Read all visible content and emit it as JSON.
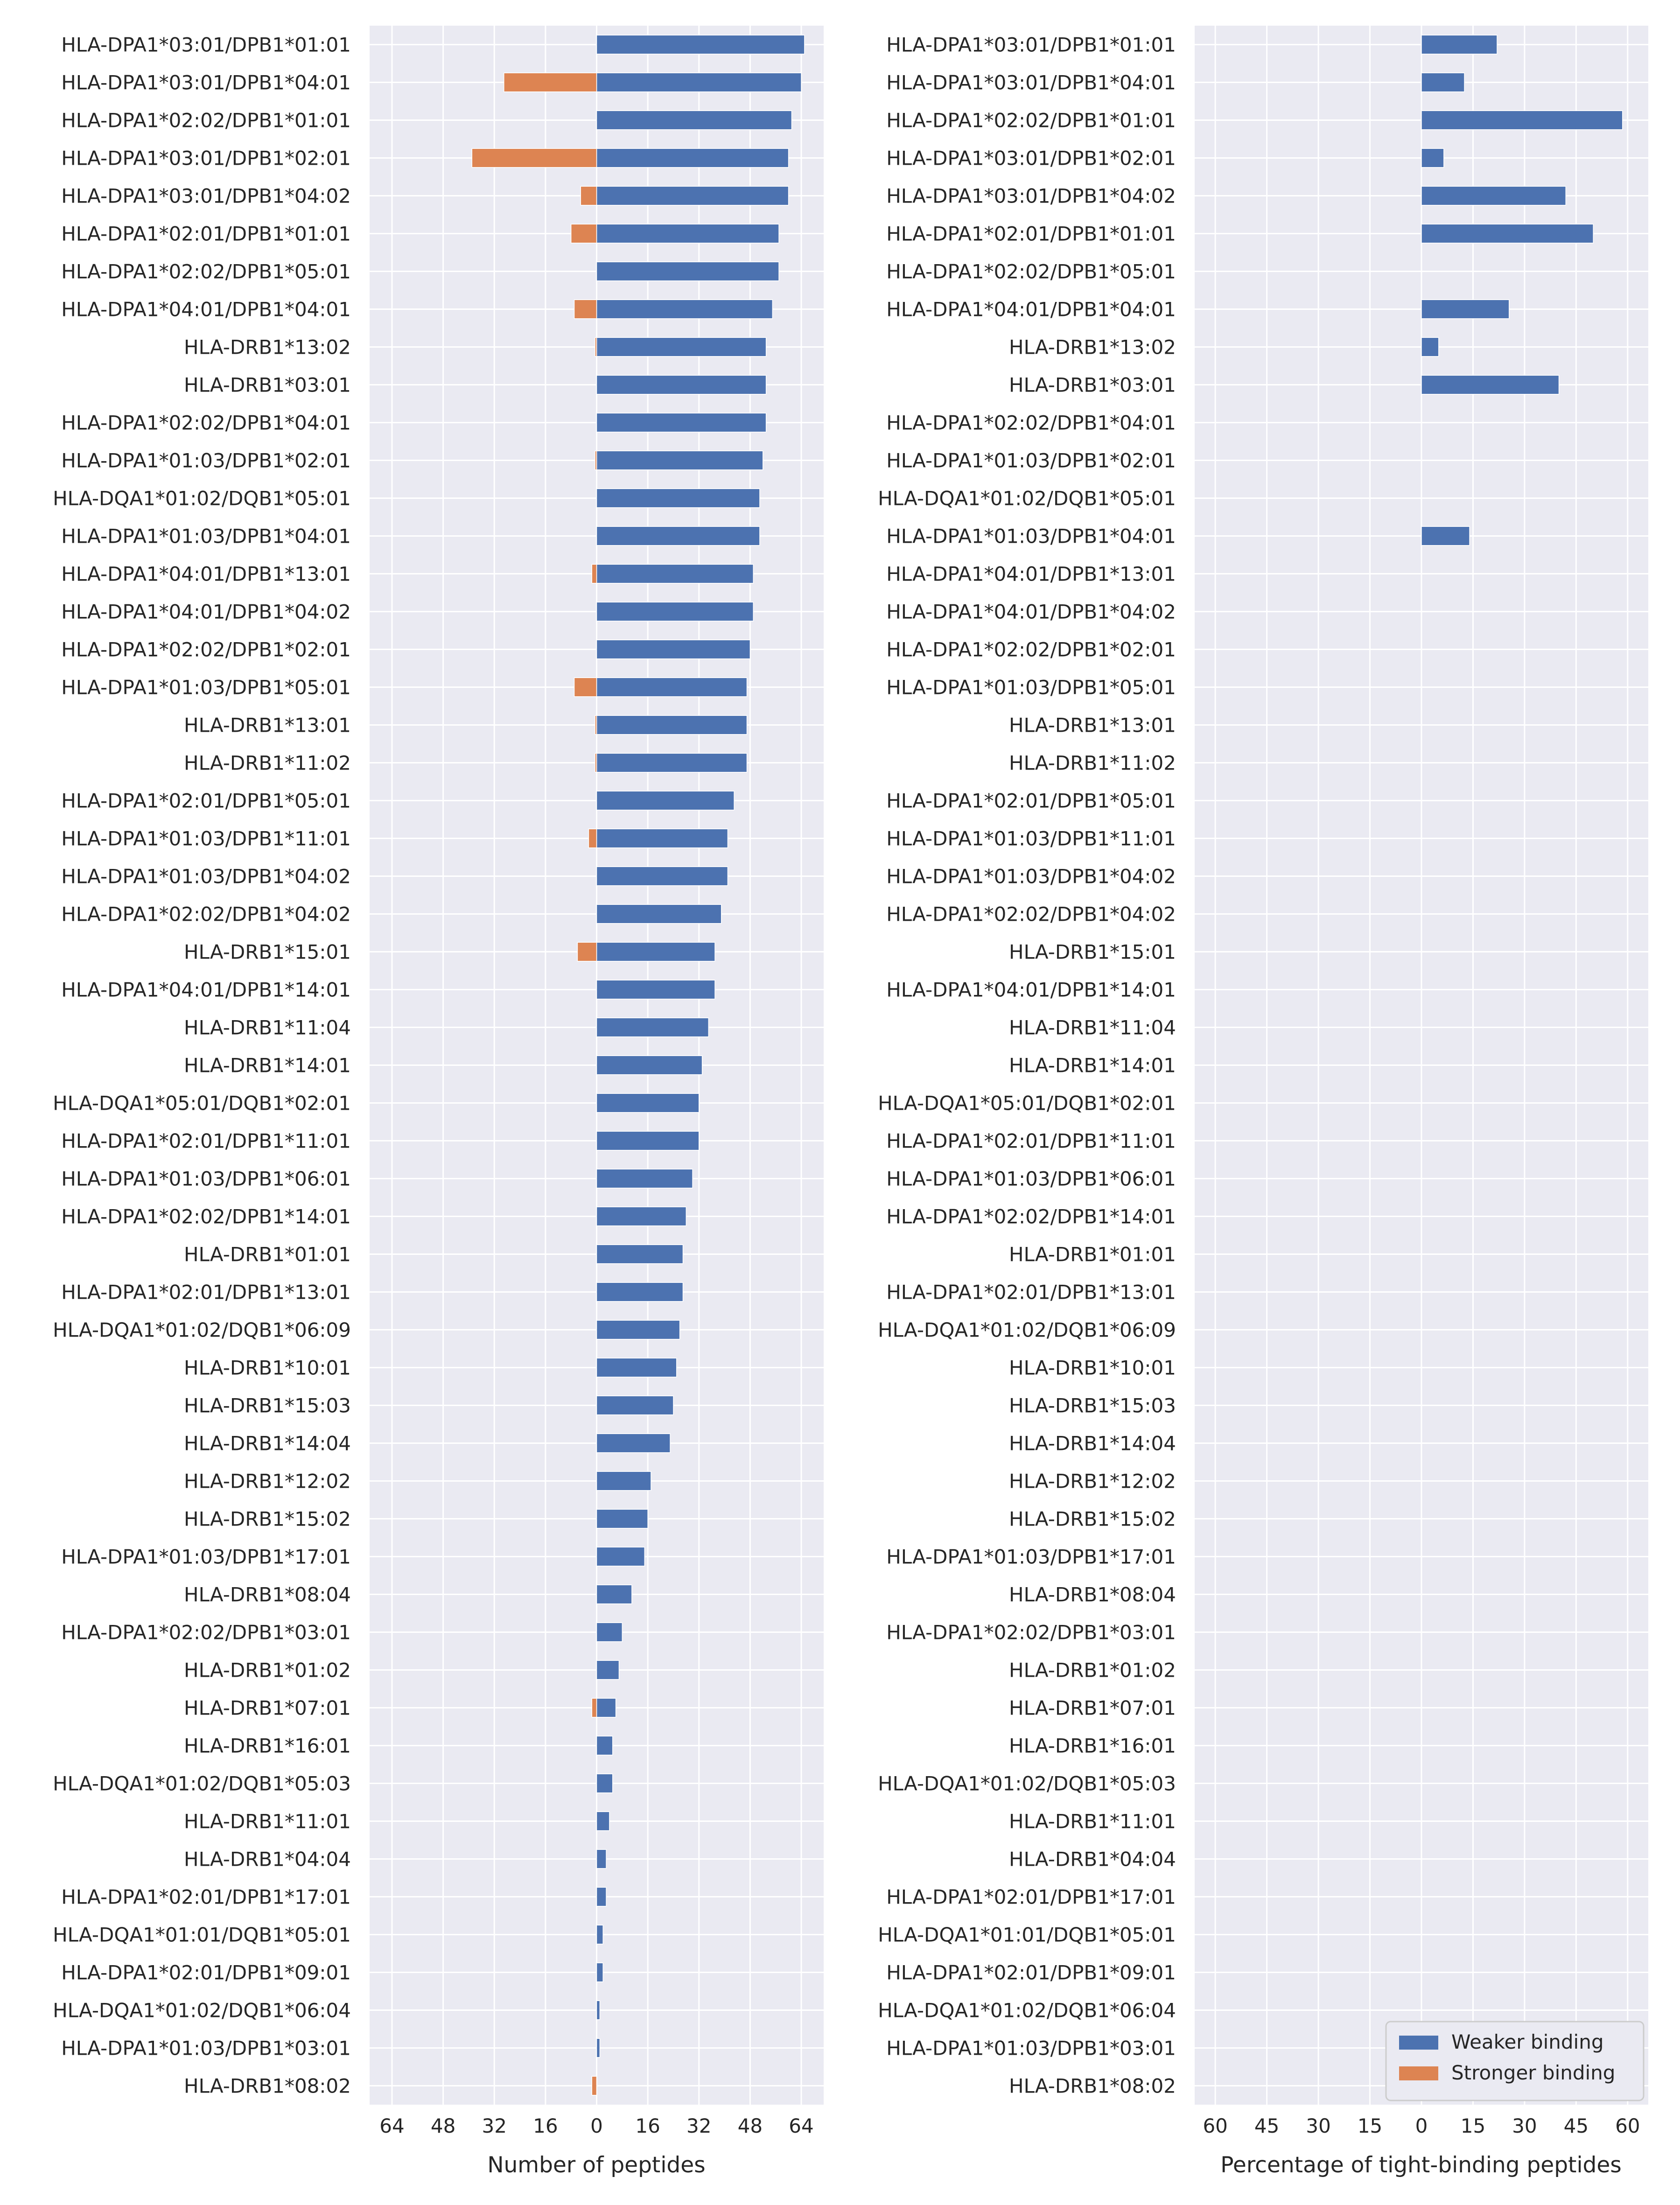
{
  "chart_data": [
    {
      "type": "bar",
      "orientation": "horizontal",
      "xlabel": "Number of peptides",
      "xticks": [
        "64",
        "48",
        "32",
        "16",
        "0",
        "16",
        "32",
        "48",
        "64"
      ],
      "xlim": [
        -71,
        71
      ],
      "grid": true,
      "categories": [
        "HLA-DPA1*03:01/DPB1*01:01",
        "HLA-DPA1*03:01/DPB1*04:01",
        "HLA-DPA1*02:02/DPB1*01:01",
        "HLA-DPA1*03:01/DPB1*02:01",
        "HLA-DPA1*03:01/DPB1*04:02",
        "HLA-DPA1*02:01/DPB1*01:01",
        "HLA-DPA1*02:02/DPB1*05:01",
        "HLA-DPA1*04:01/DPB1*04:01",
        "HLA-DRB1*13:02",
        "HLA-DRB1*03:01",
        "HLA-DPA1*02:02/DPB1*04:01",
        "HLA-DPA1*01:03/DPB1*02:01",
        "HLA-DQA1*01:02/DQB1*05:01",
        "HLA-DPA1*01:03/DPB1*04:01",
        "HLA-DPA1*04:01/DPB1*13:01",
        "HLA-DPA1*04:01/DPB1*04:02",
        "HLA-DPA1*02:02/DPB1*02:01",
        "HLA-DPA1*01:03/DPB1*05:01",
        "HLA-DRB1*13:01",
        "HLA-DRB1*11:02",
        "HLA-DPA1*02:01/DPB1*05:01",
        "HLA-DPA1*01:03/DPB1*11:01",
        "HLA-DPA1*01:03/DPB1*04:02",
        "HLA-DPA1*02:02/DPB1*04:02",
        "HLA-DRB1*15:01",
        "HLA-DPA1*04:01/DPB1*14:01",
        "HLA-DRB1*11:04",
        "HLA-DRB1*14:01",
        "HLA-DQA1*05:01/DQB1*02:01",
        "HLA-DPA1*02:01/DPB1*11:01",
        "HLA-DPA1*01:03/DPB1*06:01",
        "HLA-DPA1*02:02/DPB1*14:01",
        "HLA-DRB1*01:01",
        "HLA-DPA1*02:01/DPB1*13:01",
        "HLA-DQA1*01:02/DQB1*06:09",
        "HLA-DRB1*10:01",
        "HLA-DRB1*15:03",
        "HLA-DRB1*14:04",
        "HLA-DRB1*12:02",
        "HLA-DRB1*15:02",
        "HLA-DPA1*01:03/DPB1*17:01",
        "HLA-DRB1*08:04",
        "HLA-DPA1*02:02/DPB1*03:01",
        "HLA-DRB1*01:02",
        "HLA-DRB1*07:01",
        "HLA-DRB1*16:01",
        "HLA-DQA1*01:02/DQB1*05:03",
        "HLA-DRB1*11:01",
        "HLA-DRB1*04:04",
        "HLA-DPA1*02:01/DPB1*17:01",
        "HLA-DQA1*01:01/DQB1*05:01",
        "HLA-DPA1*02:01/DPB1*09:01",
        "HLA-DQA1*01:02/DQB1*06:04",
        "HLA-DPA1*01:03/DPB1*03:01",
        "HLA-DRB1*08:02"
      ],
      "series": [
        {
          "name": "Weaker binding",
          "color": "#4c72b0",
          "values": [
            65,
            64,
            61,
            60,
            60,
            57,
            57,
            55,
            53,
            53,
            53,
            52,
            51,
            51,
            49,
            49,
            48,
            47,
            47,
            47,
            43,
            41,
            41,
            39,
            37,
            37,
            35,
            33,
            32,
            32,
            30,
            28,
            27,
            27,
            26,
            25,
            24,
            23,
            17,
            16,
            15,
            11,
            8,
            7,
            6,
            5,
            5,
            4,
            3,
            3,
            2,
            2,
            1,
            1,
            0
          ]
        },
        {
          "name": "Stronger binding",
          "color": "#dd8452",
          "values": [
            0,
            29,
            0,
            39,
            5,
            8,
            0,
            7,
            0.5,
            0,
            0,
            0.5,
            0,
            0,
            1.5,
            0,
            0,
            7,
            0.5,
            0.5,
            0,
            2.5,
            0,
            0,
            6,
            0,
            0,
            0,
            0,
            0,
            0,
            0,
            0,
            0,
            0,
            0,
            0,
            0,
            0,
            0,
            0,
            0,
            0,
            0,
            1.5,
            0,
            0,
            0,
            0,
            0,
            0,
            0,
            0,
            0,
            1.5
          ]
        }
      ]
    },
    {
      "type": "bar",
      "orientation": "horizontal",
      "xlabel": "Percentage of tight-binding peptides",
      "xticks": [
        "60",
        "45",
        "30",
        "15",
        "0",
        "15",
        "30",
        "45",
        "60"
      ],
      "xlim": [
        -66,
        66
      ],
      "grid": true,
      "legend_position": "bottom-right",
      "legend": [
        "Weaker binding",
        "Stronger binding"
      ],
      "categories": [
        "HLA-DPA1*03:01/DPB1*01:01",
        "HLA-DPA1*03:01/DPB1*04:01",
        "HLA-DPA1*02:02/DPB1*01:01",
        "HLA-DPA1*03:01/DPB1*02:01",
        "HLA-DPA1*03:01/DPB1*04:02",
        "HLA-DPA1*02:01/DPB1*01:01",
        "HLA-DPA1*02:02/DPB1*05:01",
        "HLA-DPA1*04:01/DPB1*04:01",
        "HLA-DRB1*13:02",
        "HLA-DRB1*03:01",
        "HLA-DPA1*02:02/DPB1*04:01",
        "HLA-DPA1*01:03/DPB1*02:01",
        "HLA-DQA1*01:02/DQB1*05:01",
        "HLA-DPA1*01:03/DPB1*04:01",
        "HLA-DPA1*04:01/DPB1*13:01",
        "HLA-DPA1*04:01/DPB1*04:02",
        "HLA-DPA1*02:02/DPB1*02:01",
        "HLA-DPA1*01:03/DPB1*05:01",
        "HLA-DRB1*13:01",
        "HLA-DRB1*11:02",
        "HLA-DPA1*02:01/DPB1*05:01",
        "HLA-DPA1*01:03/DPB1*11:01",
        "HLA-DPA1*01:03/DPB1*04:02",
        "HLA-DPA1*02:02/DPB1*04:02",
        "HLA-DRB1*15:01",
        "HLA-DPA1*04:01/DPB1*14:01",
        "HLA-DRB1*11:04",
        "HLA-DRB1*14:01",
        "HLA-DQA1*05:01/DQB1*02:01",
        "HLA-DPA1*02:01/DPB1*11:01",
        "HLA-DPA1*01:03/DPB1*06:01",
        "HLA-DPA1*02:02/DPB1*14:01",
        "HLA-DRB1*01:01",
        "HLA-DPA1*02:01/DPB1*13:01",
        "HLA-DQA1*01:02/DQB1*06:09",
        "HLA-DRB1*10:01",
        "HLA-DRB1*15:03",
        "HLA-DRB1*14:04",
        "HLA-DRB1*12:02",
        "HLA-DRB1*15:02",
        "HLA-DPA1*01:03/DPB1*17:01",
        "HLA-DRB1*08:04",
        "HLA-DPA1*02:02/DPB1*03:01",
        "HLA-DRB1*01:02",
        "HLA-DRB1*07:01",
        "HLA-DRB1*16:01",
        "HLA-DQA1*01:02/DQB1*05:03",
        "HLA-DRB1*11:01",
        "HLA-DRB1*04:04",
        "HLA-DPA1*02:01/DPB1*17:01",
        "HLA-DQA1*01:01/DQB1*05:01",
        "HLA-DPA1*02:01/DPB1*09:01",
        "HLA-DQA1*01:02/DQB1*06:04",
        "HLA-DPA1*01:03/DPB1*03:01",
        "HLA-DRB1*08:02"
      ],
      "series": [
        {
          "name": "Weaker binding",
          "color": "#4c72b0",
          "values": [
            22,
            12.5,
            58.5,
            6.5,
            42,
            50,
            0,
            25.5,
            5,
            40,
            0,
            0,
            0,
            14,
            0,
            0,
            0,
            0,
            0,
            0,
            0,
            0,
            0,
            0,
            0,
            0,
            0,
            0,
            0,
            0,
            0,
            0,
            0,
            0,
            0,
            0,
            0,
            0,
            0,
            0,
            0,
            0,
            0,
            0,
            0,
            0,
            0,
            0,
            0,
            0,
            0,
            0,
            0,
            0,
            0
          ]
        },
        {
          "name": "Stronger binding",
          "color": "#dd8452",
          "values": [
            0,
            0,
            0,
            0,
            0,
            0,
            0,
            0,
            0,
            0,
            0,
            0,
            0,
            0,
            0,
            0,
            0,
            0,
            0,
            0,
            0,
            0,
            0,
            0,
            0,
            0,
            0,
            0,
            0,
            0,
            0,
            0,
            0,
            0,
            0,
            0,
            0,
            0,
            0,
            0,
            0,
            0,
            0,
            0,
            0,
            0,
            0,
            0,
            0,
            0,
            0,
            0,
            0,
            0,
            0
          ]
        }
      ]
    }
  ]
}
